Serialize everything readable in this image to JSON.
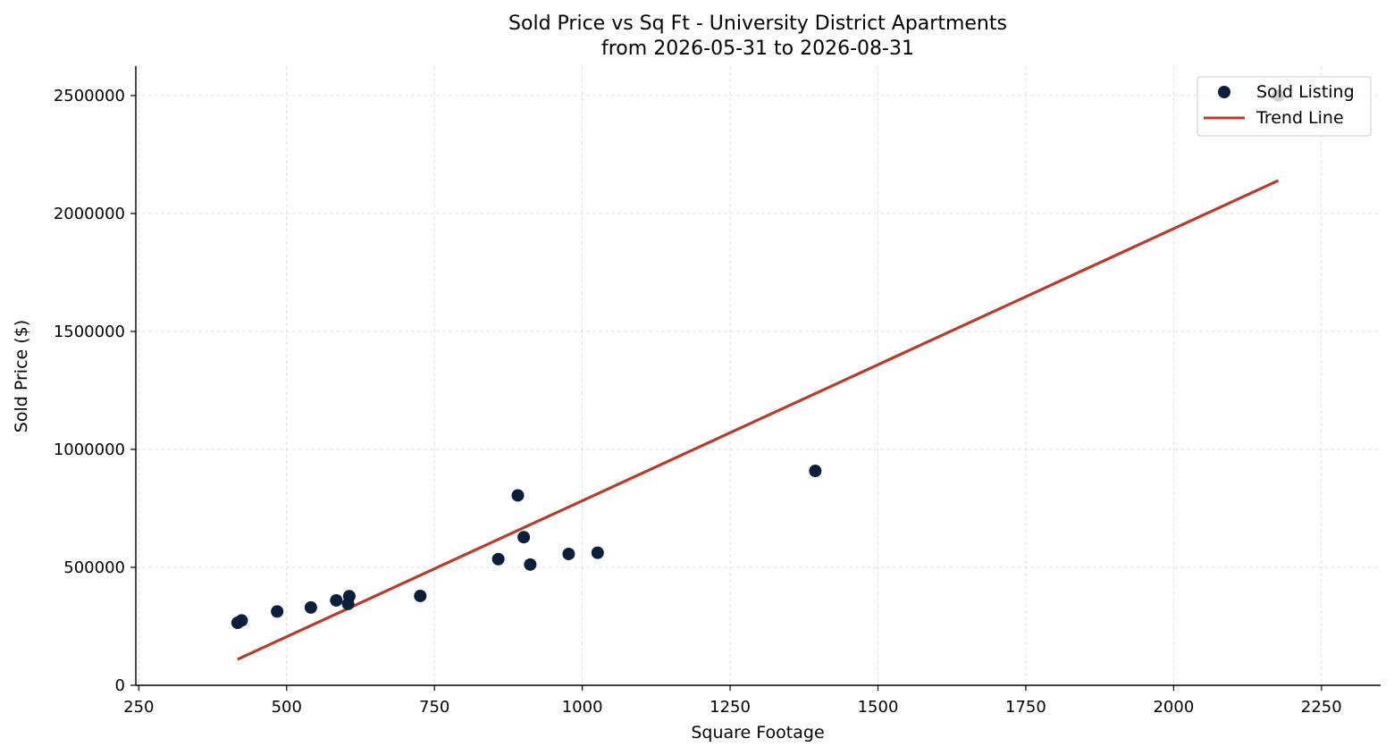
{
  "chart_data": {
    "type": "scatter",
    "title": "Sold Price vs Sq Ft - University District Apartments",
    "subtitle": "from 2026-05-31 to 2026-08-31",
    "xlabel": "Square Footage",
    "ylabel": "Sold Price ($)",
    "xlim": [
      245,
      2350
    ],
    "ylim": [
      0,
      2625000
    ],
    "xticks": [
      250,
      500,
      750,
      1000,
      1250,
      1500,
      1750,
      2000,
      2250
    ],
    "yticks": [
      0,
      500000,
      1000000,
      1500000,
      2000000,
      2500000
    ],
    "grid": true,
    "legend_position": "top-right",
    "series": [
      {
        "name": "Sold Listing",
        "kind": "scatter",
        "color": "#0b1f3a",
        "x": [
          417,
          424,
          484,
          541,
          584,
          604,
          606,
          726,
          858,
          891,
          901,
          912,
          977,
          1026,
          1394,
          2177
        ],
        "y": [
          265000,
          275000,
          313000,
          330000,
          360000,
          345000,
          378000,
          379000,
          535000,
          805000,
          628000,
          512000,
          557000,
          562000,
          909000,
          2500000
        ]
      },
      {
        "name": "Trend Line",
        "kind": "line",
        "color": "#b83c2e",
        "x": [
          417,
          2177
        ],
        "y": [
          110000,
          2140000
        ]
      }
    ]
  }
}
